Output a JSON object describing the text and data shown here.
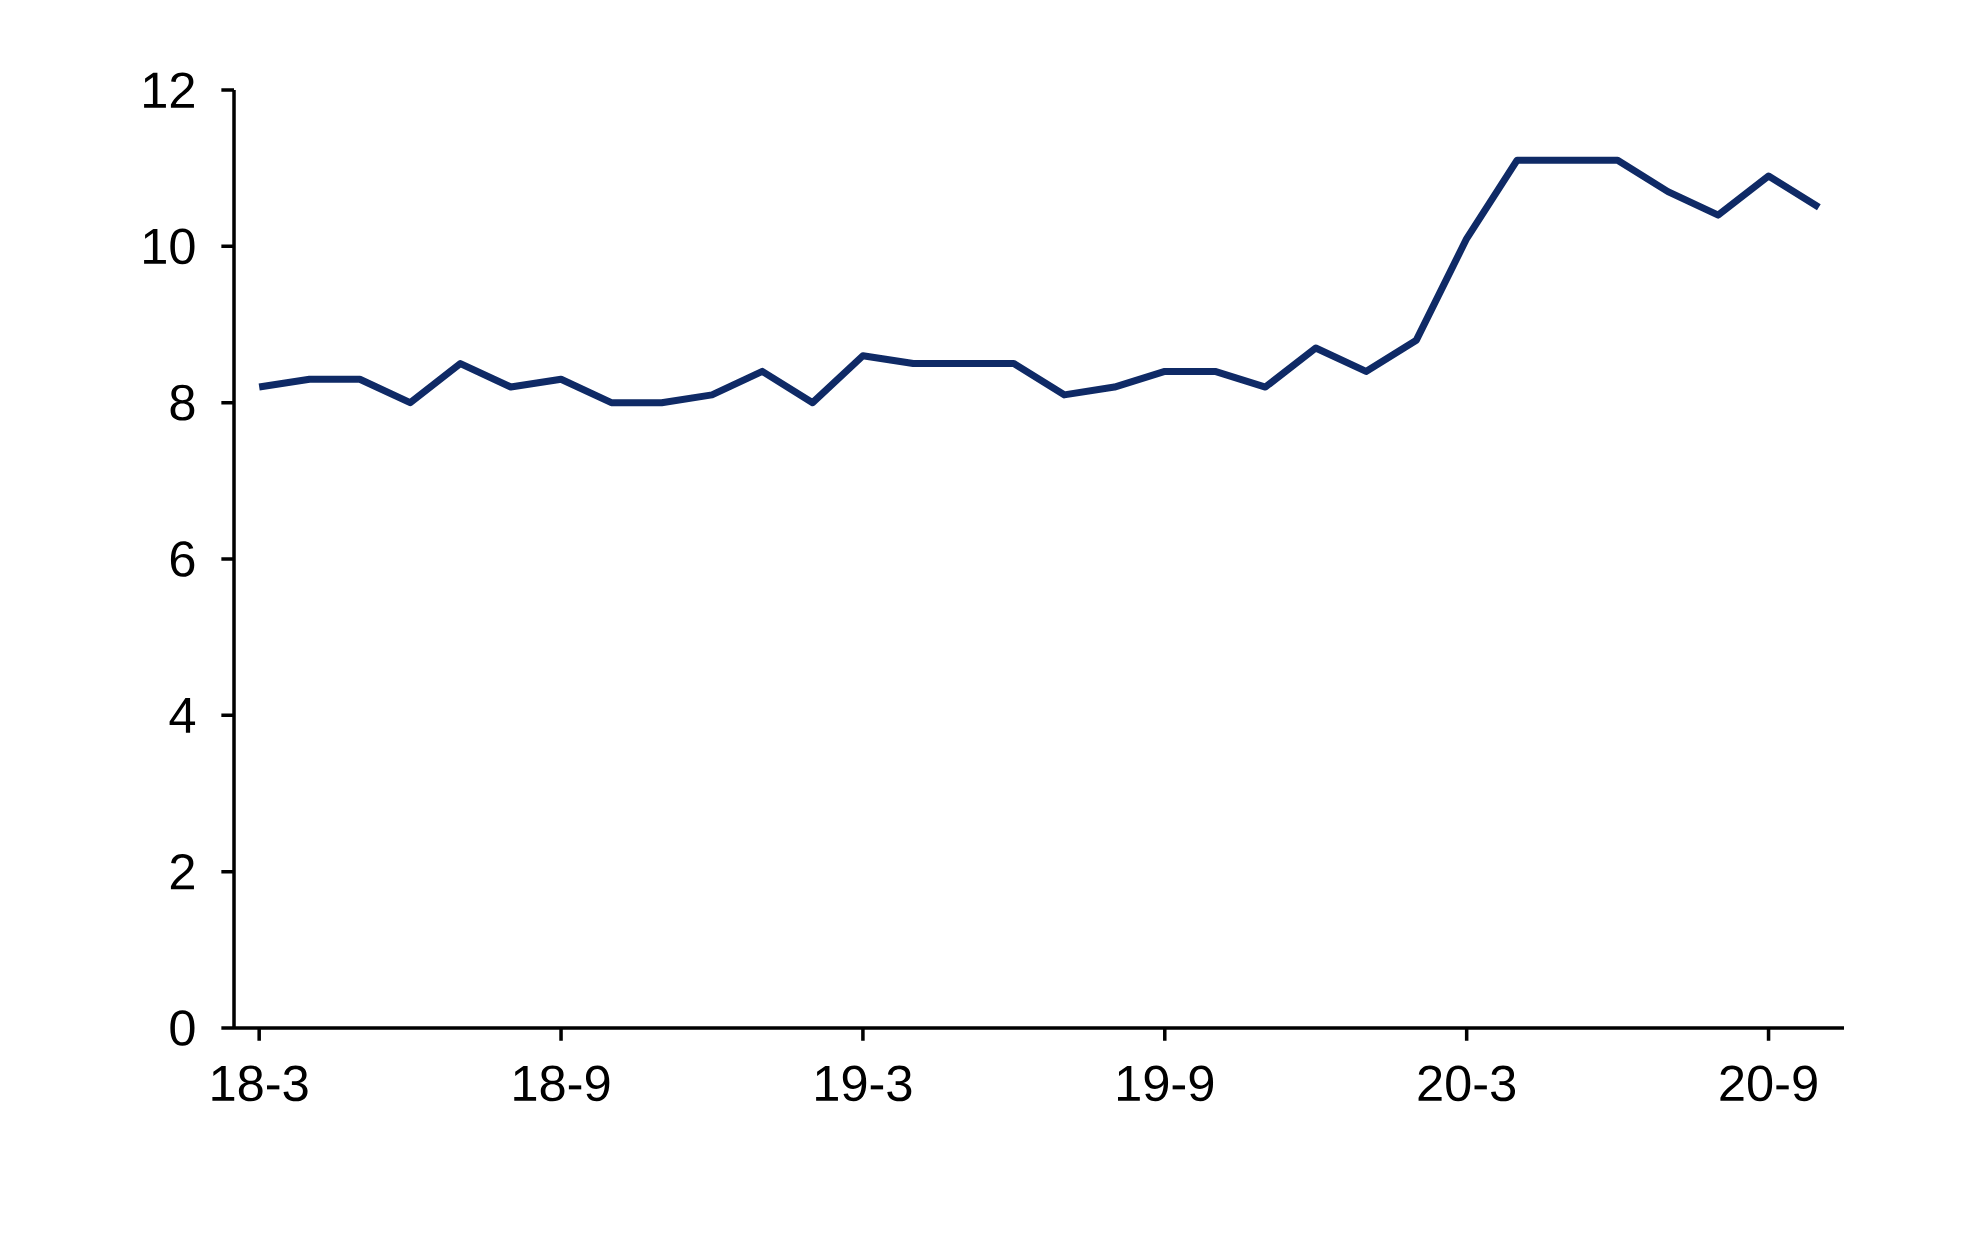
{
  "chart_data": {
    "type": "line",
    "categories": [
      "18-3",
      null,
      null,
      null,
      null,
      null,
      "18-9",
      null,
      null,
      null,
      null,
      null,
      "19-3",
      null,
      null,
      null,
      null,
      null,
      "19-9",
      null,
      null,
      null,
      null,
      null,
      "20-3",
      null,
      null,
      null,
      null,
      null,
      "20-9",
      null
    ],
    "series": [
      {
        "color": "#0f2a66",
        "values": [
          8.2,
          8.3,
          8.3,
          8.0,
          8.5,
          8.2,
          8.3,
          8.0,
          8.0,
          8.1,
          8.4,
          8.0,
          8.6,
          8.5,
          8.5,
          8.5,
          8.1,
          8.2,
          8.4,
          8.4,
          8.2,
          8.7,
          8.4,
          8.8,
          10.1,
          11.1,
          11.1,
          11.1,
          10.7,
          10.4,
          10.9,
          10.5
        ]
      }
    ],
    "ylim": [
      0,
      12
    ],
    "yticks": [
      0,
      2,
      4,
      6,
      8,
      10,
      12
    ],
    "marker": "none",
    "line_style": "solid"
  }
}
